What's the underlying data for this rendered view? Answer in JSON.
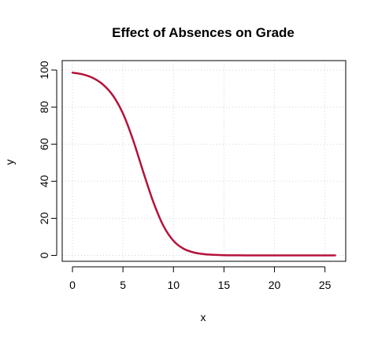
{
  "chart_data": {
    "type": "line",
    "title": "Effect of Absences on Grade",
    "xlabel": "x",
    "ylabel": "y",
    "xlim": [
      0,
      26
    ],
    "ylim": [
      0,
      100
    ],
    "x_ticks": [
      "0",
      "5",
      "10",
      "15",
      "20",
      "25"
    ],
    "y_ticks": [
      "0",
      "20",
      "40",
      "60",
      "80",
      "100"
    ],
    "grid": true,
    "series": [
      {
        "color": "#b5123c",
        "x": [
          0,
          1,
          2,
          3,
          4,
          5,
          6,
          7,
          8,
          9,
          10,
          11,
          12,
          13,
          14,
          15,
          16,
          17,
          18,
          19,
          20,
          21,
          22,
          23,
          24,
          25,
          26
        ],
        "y": [
          98.6,
          97.7,
          95.8,
          92.3,
          86.3,
          76.6,
          62.3,
          45.2,
          28.9,
          16.0,
          7.9,
          3.6,
          1.6,
          0.7,
          0.3,
          0.1,
          0.05,
          0.02,
          0.01,
          0.0,
          0.0,
          0.0,
          0.0,
          0.0,
          0.0,
          0.0,
          0.0
        ]
      }
    ]
  }
}
